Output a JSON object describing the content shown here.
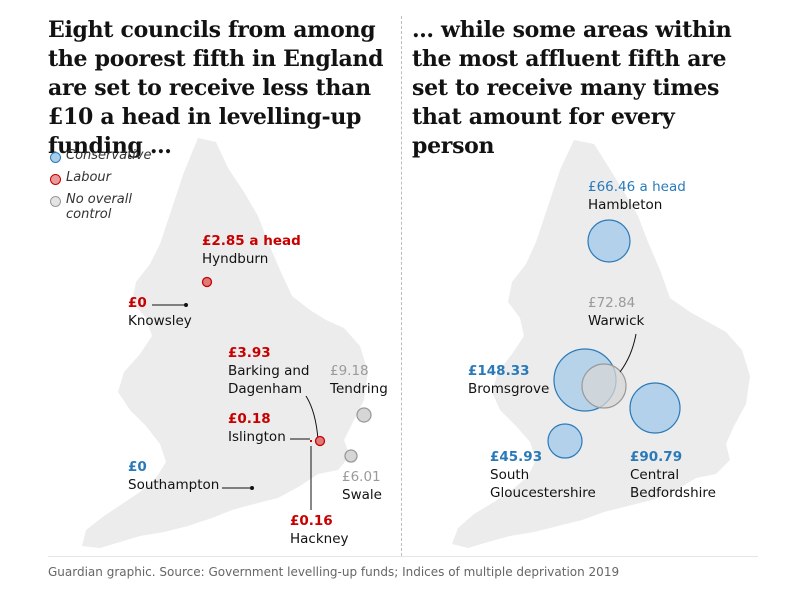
{
  "left_panel": {
    "headline": "Eight councils from among the poorest fifth in England are set to receive less than £10 a head in levelling-up funding …",
    "legend": [
      {
        "label": "Conservative",
        "color": "#7fb2dc"
      },
      {
        "label": "Labour",
        "color": "#e07a7a"
      },
      {
        "label": "No overall control",
        "color": "#d6d6d6"
      }
    ],
    "councils": [
      {
        "value": "£2.85 a head",
        "name": "Hyndburn",
        "party": "Labour"
      },
      {
        "value": "£0",
        "name": "Knowsley",
        "party": "Labour"
      },
      {
        "value": "£3.93",
        "name": "Barking and Dagenham",
        "party": "Labour"
      },
      {
        "value": "£9.18",
        "name": "Tendring",
        "party": "No overall control"
      },
      {
        "value": "£0.18",
        "name": "Islington",
        "party": "Labour"
      },
      {
        "value": "£0",
        "name": "Southampton",
        "party": "Conservative"
      },
      {
        "value": "£6.01",
        "name": "Swale",
        "party": "No overall control"
      },
      {
        "value": "£0.16",
        "name": "Hackney",
        "party": "Labour"
      }
    ]
  },
  "right_panel": {
    "headline": "… while some areas within the most affluent fifth are set to receive many times that amount for every person",
    "councils": [
      {
        "value": "£66.46 a head",
        "name": "Hambleton",
        "party": "Conservative"
      },
      {
        "value": "£72.84",
        "name": "Warwick",
        "party": "No overall control"
      },
      {
        "value": "£148.33",
        "name": "Bromsgrove",
        "party": "Conservative"
      },
      {
        "value": "£45.93",
        "name": "South Gloucestershire",
        "party": "Conservative"
      },
      {
        "value": "£90.79",
        "name": "Central Bedfordshire",
        "party": "Conservative"
      }
    ]
  },
  "footer": "Guardian graphic. Source: Government levelling-up funds; Indices of multiple deprivation 2019",
  "colors": {
    "map_fill": "#ececec",
    "conservative": "#2a7ab9",
    "labour": "#c70000",
    "noc": "#9a9a9a"
  }
}
